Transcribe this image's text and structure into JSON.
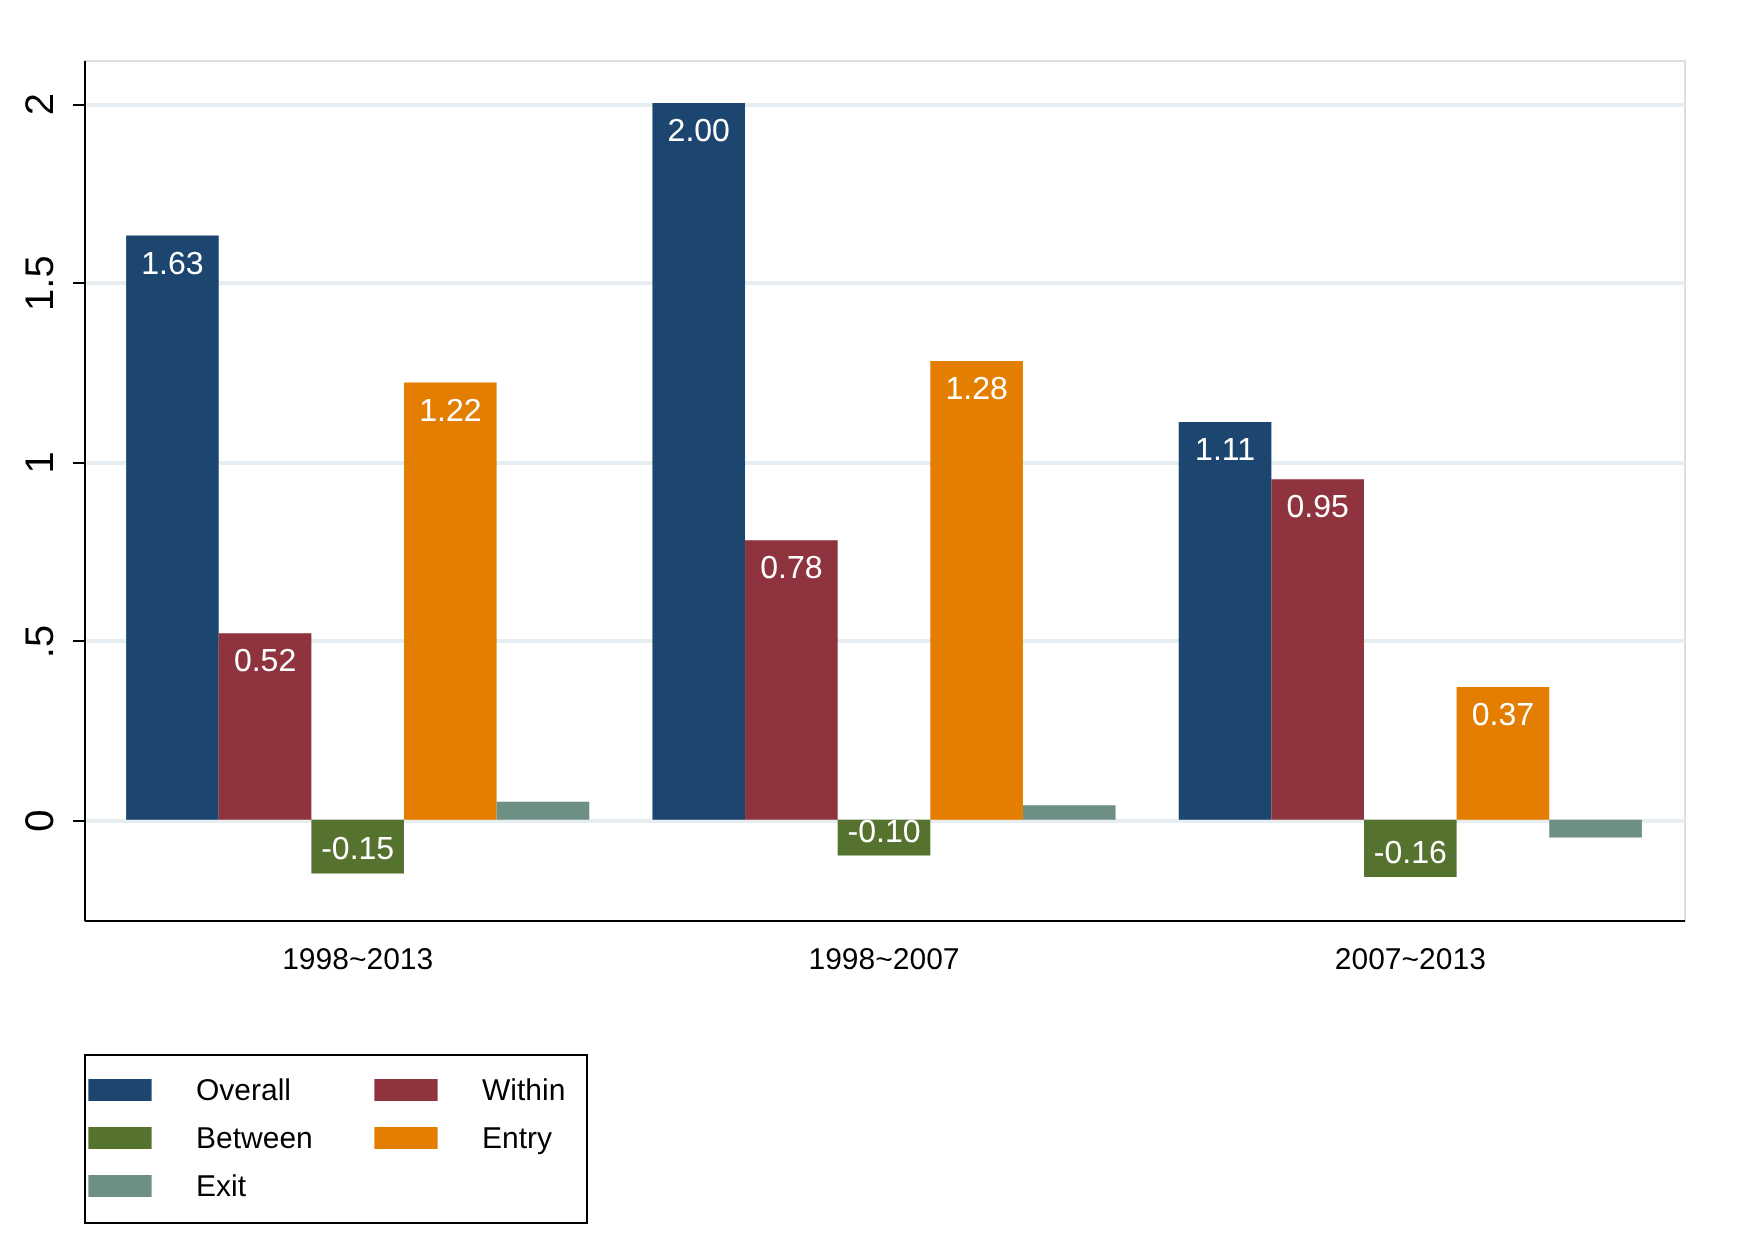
{
  "chart_data": {
    "type": "bar",
    "categories": [
      "1998~2013",
      "1998~2007",
      "2007~2013"
    ],
    "series": [
      {
        "name": "Overall",
        "color": "#1c4670",
        "values": [
          1.63,
          2.0,
          1.11
        ],
        "value_labels": [
          "1.63",
          "2.00",
          "1.11"
        ]
      },
      {
        "name": "Within",
        "color": "#8f343e",
        "values": [
          0.52,
          0.78,
          0.95
        ],
        "value_labels": [
          "0.52",
          "0.78",
          "0.95"
        ]
      },
      {
        "name": "Between",
        "color": "#55722f",
        "values": [
          -0.15,
          -0.1,
          -0.16
        ],
        "value_labels": [
          "-0.15",
          "-0.10",
          "-0.16"
        ]
      },
      {
        "name": "Entry",
        "color": "#e37e00",
        "values": [
          1.22,
          1.28,
          0.37
        ],
        "value_labels": [
          "1.22",
          "1.28",
          "0.37"
        ]
      },
      {
        "name": "Exit",
        "color": "#6e8f83",
        "values": [
          0.05,
          0.04,
          -0.05
        ],
        "value_labels": [
          null,
          null,
          null
        ]
      }
    ],
    "ylim": [
      -0.28,
      2.12
    ],
    "yticks": [
      0,
      {
        "value": 0.5,
        "label": ".5"
      },
      1,
      1.5,
      2
    ],
    "grid": "y",
    "legend": "bottom"
  }
}
